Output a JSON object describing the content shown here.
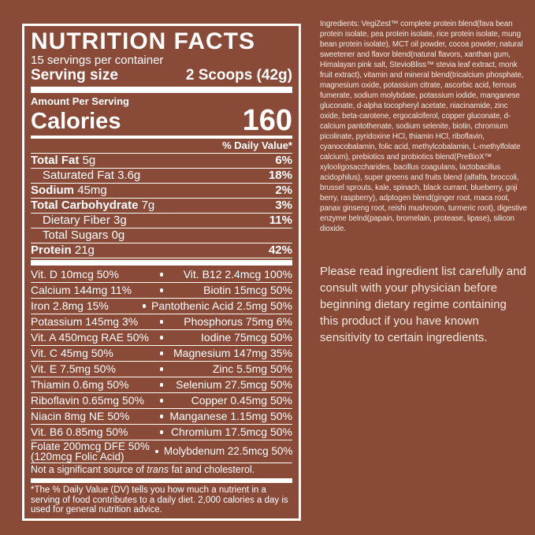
{
  "colors": {
    "background": "#8A4A38",
    "panel_border": "#FFFFFF",
    "panel_text": "#FFFFFF",
    "body_text": "#F3EADF"
  },
  "label": {
    "title": "NUTRITION FACTS",
    "servings_per_container": "15 servings per container",
    "serving_size_label": "Serving size",
    "serving_size_value": "2 Scoops (42g)",
    "amount_per_serving": "Amount Per Serving",
    "calories_label": "Calories",
    "calories_value": "160",
    "daily_value_header": "% Daily Value*",
    "nutrients": [
      {
        "name": "Total Fat",
        "amount": "5g",
        "dv": "6%"
      },
      {
        "name": "Saturated Fat",
        "amount": "3.6g",
        "dv": "18%"
      },
      {
        "name": "Sodium",
        "amount": "45mg",
        "dv": "2%"
      },
      {
        "name": "Total Carbohydrate",
        "amount": "7g",
        "dv": "3%"
      },
      {
        "name": "Dietary Fiber",
        "amount": "3g",
        "dv": "11%"
      },
      {
        "name": "Total Sugars",
        "amount": "0g",
        "dv": ""
      },
      {
        "name": "Protein",
        "amount": "21g",
        "dv": "42%"
      }
    ],
    "micronutrients": [
      {
        "left": "Vit. D 10mcg 50%",
        "right": "Vit. B12 2.4mcg 100%"
      },
      {
        "left": "Calcium 144mg 11%",
        "right": "Biotin 15mcg 50%"
      },
      {
        "left": "Iron 2.8mg 15%",
        "right": "Pantothenic Acid 2.5mg 50%"
      },
      {
        "left": "Potassium 145mg 3%",
        "right": "Phosphorus 75mg 6%"
      },
      {
        "left": "Vit. A 450mcg RAE 50%",
        "right": "Iodine 75mcg 50%"
      },
      {
        "left": "Vit. C 45mg 50%",
        "right": "Magnesium 147mg 35%"
      },
      {
        "left": "Vit. E 7.5mg 50%",
        "right": "Zinc 5.5mg 50%"
      },
      {
        "left": "Thiamin 0.6mg 50%",
        "right": "Selenium 27.5mcg 50%"
      },
      {
        "left": "Riboflavin 0.65mg 50%",
        "right": "Copper 0.45mg 50%"
      },
      {
        "left": "Niacin 8mg NE 50%",
        "right": "Manganese 1.15mg 50%"
      },
      {
        "left": "Vit. B6 0.85mg 50%",
        "right": "Chromium 17.5mcg 50%"
      }
    ],
    "folate_row": {
      "left_line1": "Folate 200mcg DFE 50%",
      "left_line2": "(120mcg Folic Acid)",
      "right": "Molybdenum 22.5mcg 50%"
    },
    "trans_note": {
      "prefix": "Not a significant source of ",
      "italic": "trans",
      "suffix": " fat and cholesterol."
    },
    "footnote": "*The % Daily Value (DV) tells you how much a nutrient in a serving of food contributes to a daily diet. 2,000 calories a day is used for general nutrition advice."
  },
  "right_panel": {
    "ingredients": "Ingredients: VegiZest™ complete protein blend(fava bean protein isolate, pea protein isolate, rice protein isolate, mung bean protein isolate), MCT oil powder, cocoa powder, natural sweetener and flavor blend(natural flavors, xanthan gum, Himalayan pink salt, StevioBliss™ stevia leaf extract, monk fruit extract), vitamin and mineral blend(tricalcium phosphate, magnesium oxide, potassium citrate, ascorbic acid, ferrous fumerate, sodium molybdate, potassium iodide, manganese gluconate, d-alpha tocopheryl acetate, niacinamide, zinc oxide, beta-carotene, ergocalciferol, copper gluconate, d-calcium pantothenate, sodium selenite, biotin, chromium picolinate, pyridoxine HCl, thiamin HCl, riboflavin, cyanocobalamin, folic acid, methylcobalamin, L-methylfolate calcium), prebiotics and probiotics blend(PreBioX™ xylooligosaccharides, bacillus coagulans, lactobacillus acidophilus), super greens and fruits blend (alfalfa, broccoli, brussel sprouts, kale, spinach, black currant, blueberry, goji berry, raspberry), adptogen blend(ginger root, maca root, panax ginseng root, reishi mushroom, turmeric root), digestive enzyme belnd(papain, bromelain, protease, lipase), silicon dioxide.",
    "advisory": "Please read ingredient list carefully and consult with your physician before beginning dietary regime containing this product if you have known sensitivity to certain ingredients."
  }
}
